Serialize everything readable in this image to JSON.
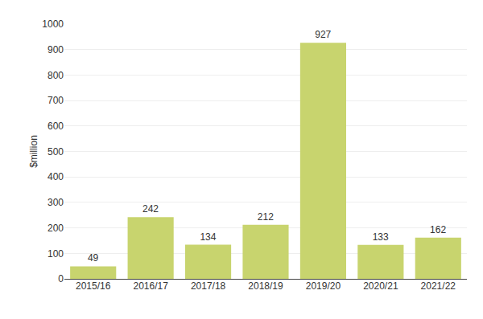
{
  "chart_data": {
    "type": "bar",
    "categories": [
      "2015/16",
      "2016/17",
      "2017/18",
      "2018/19",
      "2019/20",
      "2020/21",
      "2021/22"
    ],
    "values": [
      49,
      242,
      134,
      212,
      927,
      133,
      162
    ],
    "color": "#c8d46e",
    "ylabel": "$million",
    "ylim": [
      0,
      1000
    ],
    "yticks": [
      0,
      100,
      200,
      300,
      400,
      500,
      600,
      700,
      800,
      900,
      1000
    ],
    "grid": true,
    "data_labels": true
  }
}
